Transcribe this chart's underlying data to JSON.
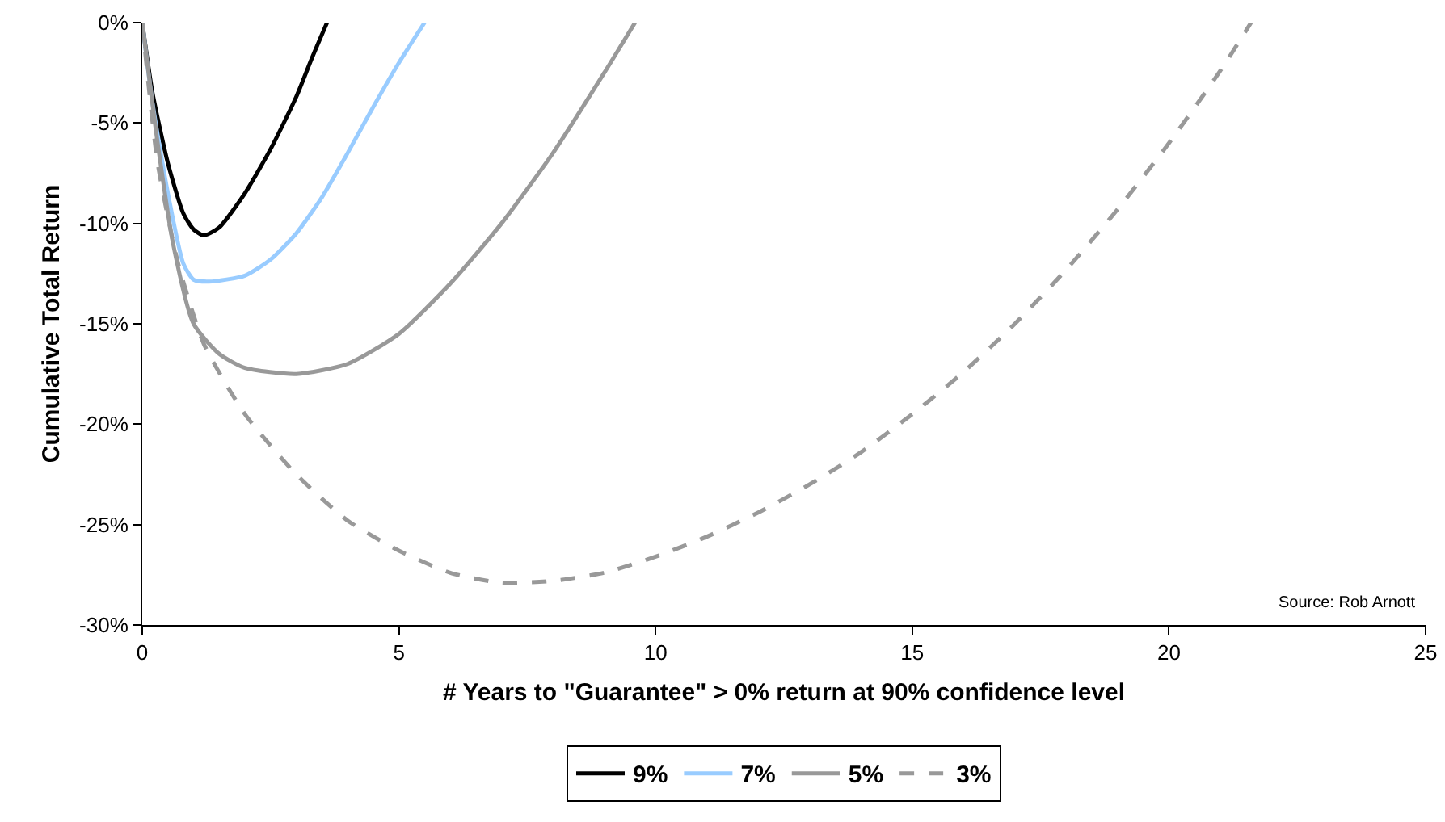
{
  "chart_data": {
    "type": "line",
    "xlabel": "# Years to \"Guarantee\" > 0% return at 90% confidence level",
    "ylabel": "Cumulative Total Return",
    "annotations": [
      "Source: Rob Arnott"
    ],
    "xlim": [
      0,
      25
    ],
    "xticks": [
      0,
      5,
      10,
      15,
      20,
      25
    ],
    "ylim": [
      -30,
      0
    ],
    "yticks": [
      {
        "value": -30,
        "label": "-30%"
      },
      {
        "value": -25,
        "label": "-25%"
      },
      {
        "value": -20,
        "label": "-20%"
      },
      {
        "value": -15,
        "label": "-15%"
      },
      {
        "value": -10,
        "label": "-10%"
      },
      {
        "value": -5,
        "label": "-5%"
      },
      {
        "value": 0,
        "label": "0%"
      }
    ],
    "grid": false,
    "legend": "bottom",
    "marker": "none",
    "series": [
      {
        "name": "9%",
        "color": "#000000",
        "line_style": "solid",
        "x": [
          0,
          0.2,
          0.5,
          0.8,
          1.0,
          1.2,
          1.5,
          2.0,
          2.5,
          3.0,
          3.3,
          3.6
        ],
        "values": [
          0,
          -3.5,
          -7,
          -9.5,
          -10.3,
          -10.6,
          -10.2,
          -8.5,
          -6.3,
          -3.7,
          -1.8,
          0
        ]
      },
      {
        "name": "7%",
        "color": "#99ccff",
        "line_style": "solid",
        "x": [
          0,
          0.2,
          0.5,
          0.8,
          1.0,
          1.3,
          2.0,
          2.5,
          3.0,
          3.5,
          4.0,
          4.5,
          5.0,
          5.5
        ],
        "values": [
          0,
          -4,
          -8.5,
          -12,
          -12.8,
          -12.9,
          -12.6,
          -11.8,
          -10.5,
          -8.7,
          -6.5,
          -4.2,
          -2.0,
          0
        ]
      },
      {
        "name": "5%",
        "color": "#999999",
        "line_style": "solid",
        "x": [
          0,
          0.3,
          0.6,
          1,
          1.5,
          2,
          3,
          4,
          5,
          6,
          7,
          8,
          9,
          9.6
        ],
        "values": [
          0,
          -6,
          -11,
          -15,
          -16.5,
          -17.2,
          -17.5,
          -17,
          -15.5,
          -13,
          -10,
          -6.5,
          -2.5,
          0
        ]
      },
      {
        "name": "3%",
        "color": "#999999",
        "line_style": "dashed",
        "x": [
          0,
          0.3,
          0.7,
          1.2,
          2,
          3,
          4,
          5,
          6,
          7,
          8,
          9,
          10,
          11,
          12,
          13,
          14,
          15,
          16,
          17,
          18,
          19,
          20,
          21,
          21.6
        ],
        "values": [
          0,
          -7,
          -12,
          -16,
          -19.5,
          -22.5,
          -24.8,
          -26.3,
          -27.4,
          -27.9,
          -27.8,
          -27.4,
          -26.6,
          -25.6,
          -24.4,
          -23,
          -21.4,
          -19.5,
          -17.4,
          -15,
          -12.3,
          -9.3,
          -6,
          -2.4,
          0
        ]
      }
    ]
  }
}
